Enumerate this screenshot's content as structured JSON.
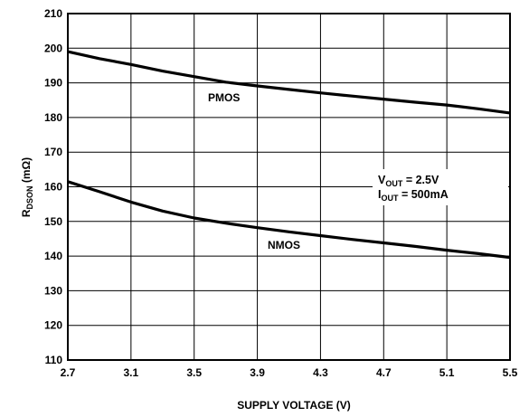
{
  "chart_data": {
    "type": "line",
    "title": "",
    "xlabel": "SUPPLY VOLTAGE (V)",
    "ylabel": {
      "main": "R",
      "sub": "DSON",
      "unit": " (mΩ)"
    },
    "xlim": [
      2.7,
      5.5
    ],
    "ylim": [
      110,
      210
    ],
    "x_ticks": [
      "2.7",
      "3.1",
      "3.5",
      "3.9",
      "4.3",
      "4.7",
      "5.1",
      "5.5"
    ],
    "y_ticks": [
      "110",
      "120",
      "130",
      "140",
      "150",
      "160",
      "170",
      "180",
      "190",
      "200",
      "210"
    ],
    "x_tick_values": [
      2.7,
      3.1,
      3.5,
      3.9,
      4.3,
      4.7,
      5.1,
      5.5
    ],
    "y_tick_values": [
      110,
      120,
      130,
      140,
      150,
      160,
      170,
      180,
      190,
      200,
      210
    ],
    "grid": true,
    "series": [
      {
        "name": "PMOS",
        "x": [
          2.7,
          2.9,
          3.1,
          3.3,
          3.5,
          3.7,
          3.9,
          4.1,
          4.3,
          4.5,
          4.7,
          4.9,
          5.1,
          5.3,
          5.5
        ],
        "y": [
          199,
          197,
          195.3,
          193.4,
          191.8,
          190.2,
          189.1,
          188.1,
          187.1,
          186.2,
          185.3,
          184.4,
          183.6,
          182.5,
          181.3
        ]
      },
      {
        "name": "NMOS",
        "x": [
          2.7,
          2.9,
          3.1,
          3.3,
          3.5,
          3.7,
          3.9,
          4.1,
          4.3,
          4.5,
          4.7,
          4.9,
          5.1,
          5.3,
          5.5
        ],
        "y": [
          161.5,
          158.6,
          155.6,
          153.0,
          151.0,
          149.5,
          148.2,
          147.0,
          145.9,
          144.8,
          143.8,
          142.8,
          141.7,
          140.7,
          139.6
        ]
      }
    ],
    "annotations": {
      "vout": {
        "main": "V",
        "sub": "OUT",
        "rest": " = 2.5V"
      },
      "iout": {
        "main": "I",
        "sub": "OUT",
        "rest": " = 500mA"
      }
    }
  }
}
